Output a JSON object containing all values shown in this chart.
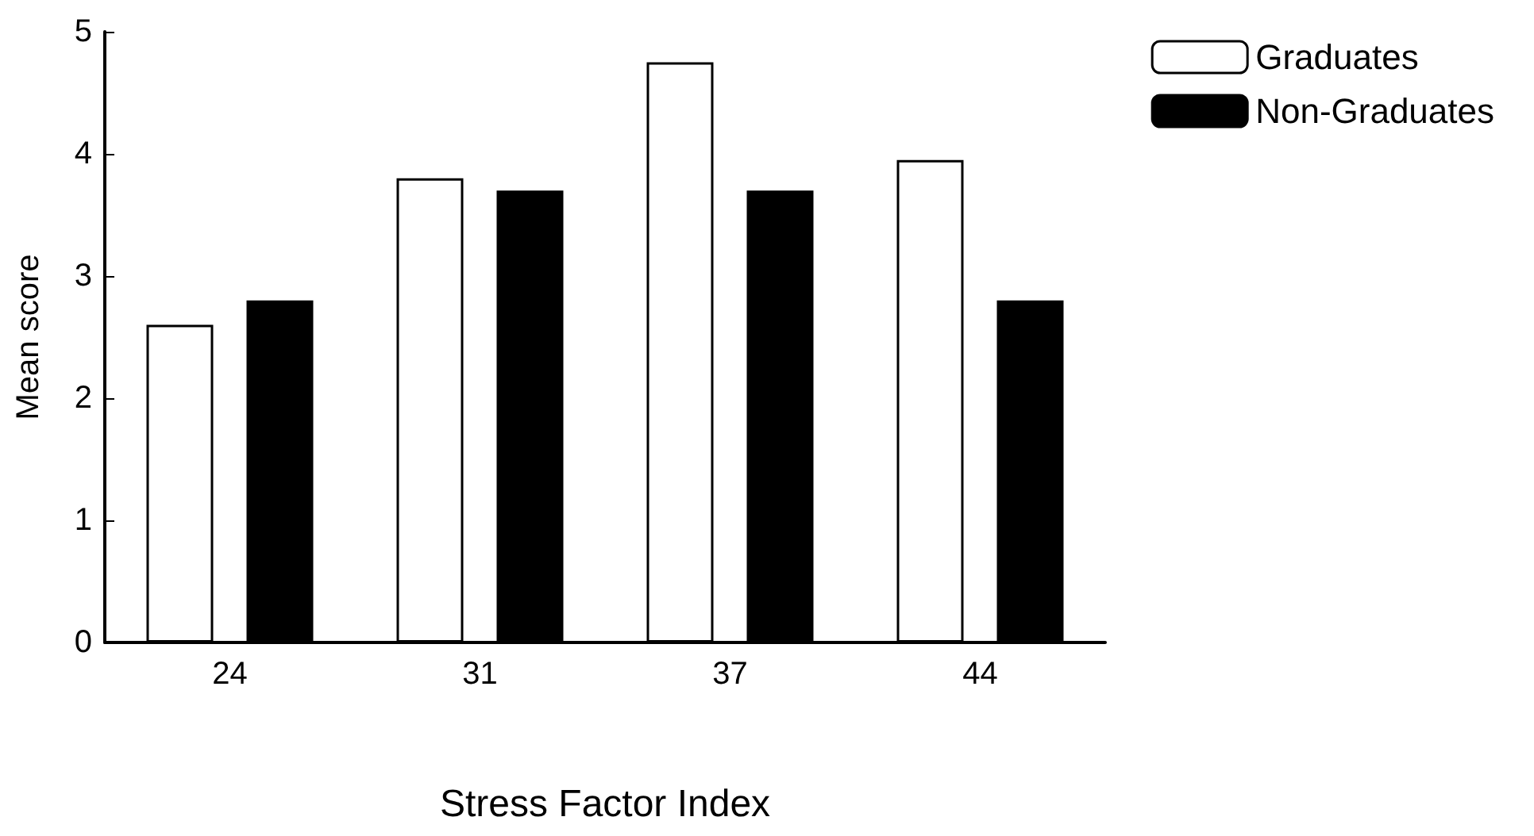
{
  "chart_data": {
    "type": "bar",
    "xlabel": "Stress Factor Index",
    "ylabel": "Mean score",
    "categories": [
      "24",
      "31",
      "37",
      "44"
    ],
    "series": [
      {
        "name": "Graduates",
        "color": "#ffffff",
        "values": [
          2.6,
          3.8,
          4.75,
          3.95
        ]
      },
      {
        "name": "Non-Graduates",
        "color": "#000000",
        "values": [
          2.8,
          3.7,
          3.7,
          2.8
        ]
      }
    ],
    "ylim": [
      0,
      5
    ],
    "yticks": [
      0,
      1,
      2,
      3,
      4,
      5
    ],
    "grid": false,
    "legend": "top right"
  }
}
